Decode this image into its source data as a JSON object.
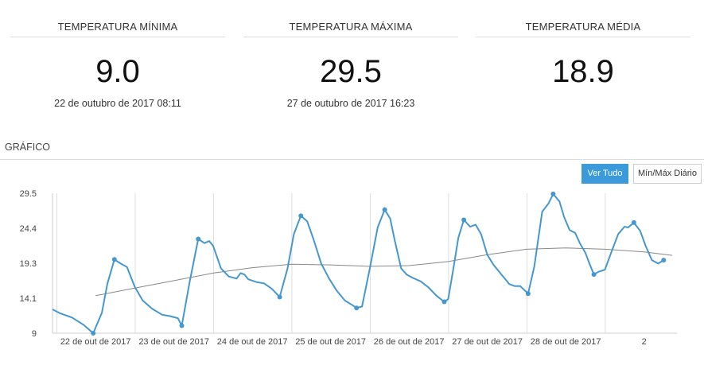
{
  "stats": [
    {
      "title": "TEMPERATURA MÍNIMA",
      "value": "9.0",
      "date": "22 de outubro de 2017 08:11"
    },
    {
      "title": "TEMPERATURA MÁXIMA",
      "value": "29.5",
      "date": "27 de outubro de 2017 16:23"
    },
    {
      "title": "TEMPERATURA MÉDIA",
      "value": "18.9",
      "date": ""
    }
  ],
  "section_title": "GRÁFICO",
  "buttons": {
    "all_label": "Ver Tudo",
    "daily_label": "Mín/Máx Diário"
  },
  "colors": {
    "series": "#4597d0",
    "trend": "#888888",
    "accent": "#3b9ad9"
  },
  "chart_data": {
    "type": "line",
    "x_unit": "day",
    "xlim": [
      -0.55,
      7.42
    ],
    "ylim": [
      9,
      29.5
    ],
    "yticks": [
      "29.5",
      "24.4",
      "19.3",
      "14.1",
      "9"
    ],
    "x_ticks": [
      {
        "x": 0,
        "label": "22 de out de 2017"
      },
      {
        "x": 1,
        "label": "23 de out de 2017"
      },
      {
        "x": 2,
        "label": "24 de out de 2017"
      },
      {
        "x": 3,
        "label": "25 de out de 2017"
      },
      {
        "x": 4,
        "label": "26 de out de 2017"
      },
      {
        "x": 5,
        "label": "27 de out de 2017"
      },
      {
        "x": 6,
        "label": "28 de out de 2017"
      },
      {
        "x": 7,
        "label": "2"
      }
    ],
    "grid": "vertical at day boundaries",
    "series": [
      {
        "points": [
          [
            -0.55,
            12.5
          ],
          [
            -0.45,
            11.9
          ],
          [
            -0.3,
            11.3
          ],
          [
            -0.15,
            10.2
          ],
          [
            -0.03,
            9.0
          ],
          [
            0.08,
            12.0
          ],
          [
            0.15,
            16.2
          ],
          [
            0.24,
            19.8
          ],
          [
            0.32,
            19.2
          ],
          [
            0.4,
            18.7
          ],
          [
            0.5,
            15.8
          ],
          [
            0.6,
            13.8
          ],
          [
            0.72,
            12.6
          ],
          [
            0.85,
            11.7
          ],
          [
            0.95,
            11.5
          ],
          [
            1.05,
            11.2
          ],
          [
            1.1,
            10.1
          ],
          [
            1.2,
            16.5
          ],
          [
            1.31,
            22.8
          ],
          [
            1.39,
            22.2
          ],
          [
            1.45,
            22.5
          ],
          [
            1.5,
            21.8
          ],
          [
            1.6,
            18.5
          ],
          [
            1.7,
            17.3
          ],
          [
            1.8,
            17.0
          ],
          [
            1.85,
            17.8
          ],
          [
            1.9,
            17.6
          ],
          [
            1.95,
            16.9
          ],
          [
            2.05,
            16.5
          ],
          [
            2.15,
            16.3
          ],
          [
            2.25,
            15.5
          ],
          [
            2.35,
            14.3
          ],
          [
            2.45,
            18.5
          ],
          [
            2.53,
            23.5
          ],
          [
            2.62,
            26.2
          ],
          [
            2.7,
            25.4
          ],
          [
            2.78,
            22.8
          ],
          [
            2.88,
            19.2
          ],
          [
            2.98,
            17.0
          ],
          [
            3.08,
            15.2
          ],
          [
            3.18,
            13.8
          ],
          [
            3.28,
            13.1
          ],
          [
            3.33,
            12.7
          ],
          [
            3.4,
            12.9
          ],
          [
            3.5,
            18.5
          ],
          [
            3.6,
            24.5
          ],
          [
            3.69,
            27.1
          ],
          [
            3.76,
            25.8
          ],
          [
            3.82,
            22.5
          ],
          [
            3.9,
            18.5
          ],
          [
            3.97,
            17.6
          ],
          [
            4.05,
            17.1
          ],
          [
            4.15,
            16.6
          ],
          [
            4.25,
            15.7
          ],
          [
            4.35,
            14.5
          ],
          [
            4.45,
            13.6
          ],
          [
            4.5,
            14.0
          ],
          [
            4.56,
            18.0
          ],
          [
            4.63,
            23.0
          ],
          [
            4.7,
            25.6
          ],
          [
            4.78,
            24.6
          ],
          [
            4.85,
            24.9
          ],
          [
            4.92,
            23.5
          ],
          [
            5.0,
            20.5
          ],
          [
            5.08,
            19.0
          ],
          [
            5.18,
            17.6
          ],
          [
            5.28,
            16.2
          ],
          [
            5.35,
            15.9
          ],
          [
            5.42,
            15.9
          ],
          [
            5.52,
            14.8
          ],
          [
            5.6,
            18.8
          ],
          [
            5.7,
            26.8
          ],
          [
            5.78,
            28.0
          ],
          [
            5.84,
            29.4
          ],
          [
            5.92,
            28.3
          ],
          [
            5.98,
            26.0
          ],
          [
            6.05,
            24.1
          ],
          [
            6.12,
            23.7
          ],
          [
            6.18,
            22.2
          ],
          [
            6.25,
            20.8
          ],
          [
            6.3,
            19.3
          ],
          [
            6.36,
            17.6
          ],
          [
            6.42,
            18.0
          ],
          [
            6.5,
            18.3
          ],
          [
            6.58,
            20.8
          ],
          [
            6.67,
            23.5
          ],
          [
            6.75,
            24.6
          ],
          [
            6.8,
            24.5
          ],
          [
            6.87,
            25.2
          ],
          [
            6.95,
            24.0
          ],
          [
            7.02,
            21.8
          ],
          [
            7.1,
            19.7
          ],
          [
            7.18,
            19.2
          ],
          [
            7.25,
            19.7
          ]
        ],
        "markers": [
          [
            -0.03,
            9.0
          ],
          [
            0.24,
            19.8
          ],
          [
            1.1,
            10.1
          ],
          [
            1.31,
            22.8
          ],
          [
            2.35,
            14.3
          ],
          [
            2.62,
            26.2
          ],
          [
            3.33,
            12.7
          ],
          [
            3.69,
            27.1
          ],
          [
            4.45,
            13.6
          ],
          [
            4.7,
            25.6
          ],
          [
            5.52,
            14.8
          ],
          [
            5.84,
            29.4
          ],
          [
            6.36,
            17.6
          ],
          [
            6.87,
            25.2
          ],
          [
            7.25,
            19.7
          ]
        ]
      },
      {
        "points": [
          [
            0.0,
            14.5
          ],
          [
            0.5,
            15.6
          ],
          [
            1.0,
            16.7
          ],
          [
            1.5,
            17.8
          ],
          [
            2.0,
            18.6
          ],
          [
            2.5,
            19.1
          ],
          [
            3.0,
            19.0
          ],
          [
            3.5,
            18.8
          ],
          [
            4.0,
            18.9
          ],
          [
            4.5,
            19.5
          ],
          [
            5.0,
            20.5
          ],
          [
            5.5,
            21.3
          ],
          [
            6.0,
            21.5
          ],
          [
            6.5,
            21.3
          ],
          [
            7.0,
            20.9
          ],
          [
            7.36,
            20.4
          ]
        ]
      }
    ]
  }
}
